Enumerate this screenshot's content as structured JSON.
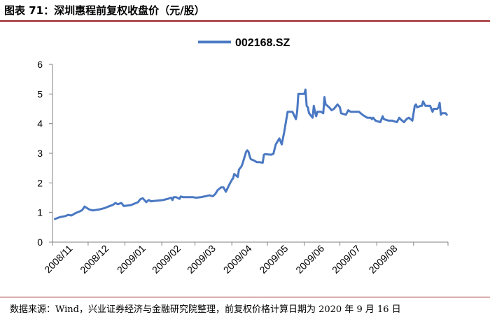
{
  "header": {
    "title": "图表 71：深圳惠程前复权收盘价（元/股）"
  },
  "footer": {
    "source": "数据来源：Wind，兴业证券经济与金融研究院整理，前复权价格计算日期为 2020 年 9 月 16 日"
  },
  "colors": {
    "line": "#4a78c2",
    "title_rule": "#9c1f23"
  },
  "chart_data": {
    "type": "line",
    "title": "",
    "xlabel": "",
    "ylabel": "",
    "ylim": [
      0,
      6
    ],
    "yticks": [
      0,
      1,
      2,
      3,
      4,
      5,
      6
    ],
    "grid": false,
    "legend_position": "top-center",
    "x_tick_labels": [
      "2008/11",
      "2008/12",
      "2009/01",
      "2009/02",
      "2009/03",
      "2009/04",
      "2009/05",
      "2009/06",
      "2009/07",
      "2009/08"
    ],
    "series": [
      {
        "name": "002168.SZ",
        "points": [
          [
            "2008/11/03",
            0.78
          ],
          [
            "2008/11/07",
            0.84
          ],
          [
            "2008/11/12",
            0.88
          ],
          [
            "2008/11/14",
            0.92
          ],
          [
            "2008/11/17",
            0.9
          ],
          [
            "2008/11/20",
            0.97
          ],
          [
            "2008/11/24",
            1.04
          ],
          [
            "2008/11/26",
            1.08
          ],
          [
            "2008/11/28",
            1.2
          ],
          [
            "2008/12/02",
            1.1
          ],
          [
            "2008/12/05",
            1.07
          ],
          [
            "2008/12/10",
            1.1
          ],
          [
            "2008/12/15",
            1.15
          ],
          [
            "2008/12/18",
            1.2
          ],
          [
            "2008/12/22",
            1.26
          ],
          [
            "2008/12/24",
            1.32
          ],
          [
            "2008/12/26",
            1.28
          ],
          [
            "2008/12/29",
            1.32
          ],
          [
            "2008/12/31",
            1.22
          ],
          [
            "2009/01/06",
            1.25
          ],
          [
            "2009/01/09",
            1.3
          ],
          [
            "2009/01/12",
            1.35
          ],
          [
            "2009/01/14",
            1.45
          ],
          [
            "2009/01/16",
            1.48
          ],
          [
            "2009/01/19",
            1.35
          ],
          [
            "2009/01/21",
            1.42
          ],
          [
            "2009/01/23",
            1.38
          ],
          [
            "2009/02/02",
            1.42
          ],
          [
            "2009/02/04",
            1.44
          ],
          [
            "2009/02/06",
            1.46
          ],
          [
            "2009/02/09",
            1.5
          ],
          [
            "2009/02/10",
            1.42
          ],
          [
            "2009/02/11",
            1.52
          ],
          [
            "2009/02/13",
            1.52
          ],
          [
            "2009/02/16",
            1.46
          ],
          [
            "2009/02/17",
            1.54
          ],
          [
            "2009/02/19",
            1.52
          ],
          [
            "2009/02/23",
            1.52
          ],
          [
            "2009/02/27",
            1.52
          ],
          [
            "2009/03/02",
            1.5
          ],
          [
            "2009/03/06",
            1.52
          ],
          [
            "2009/03/10",
            1.55
          ],
          [
            "2009/03/13",
            1.58
          ],
          [
            "2009/03/16",
            1.55
          ],
          [
            "2009/03/18",
            1.62
          ],
          [
            "2009/03/20",
            1.75
          ],
          [
            "2009/03/23",
            1.85
          ],
          [
            "2009/03/25",
            1.85
          ],
          [
            "2009/03/27",
            1.7
          ],
          [
            "2009/03/30",
            1.95
          ],
          [
            "2009/04/01",
            2.1
          ],
          [
            "2009/04/02",
            2.15
          ],
          [
            "2009/04/03",
            2.3
          ],
          [
            "2009/04/06",
            2.2
          ],
          [
            "2009/04/07",
            2.45
          ],
          [
            "2009/04/09",
            2.55
          ],
          [
            "2009/04/10",
            2.65
          ],
          [
            "2009/04/13",
            3.05
          ],
          [
            "2009/04/14",
            3.1
          ],
          [
            "2009/04/15",
            3.05
          ],
          [
            "2009/04/16",
            2.9
          ],
          [
            "2009/04/17",
            2.8
          ],
          [
            "2009/04/20",
            2.75
          ],
          [
            "2009/04/22",
            2.7
          ],
          [
            "2009/04/24",
            2.7
          ],
          [
            "2009/04/27",
            2.68
          ],
          [
            "2009/04/28",
            2.95
          ],
          [
            "2009/04/29",
            2.97
          ],
          [
            "2009/05/04",
            2.95
          ],
          [
            "2009/05/06",
            2.98
          ],
          [
            "2009/05/08",
            3.3
          ],
          [
            "2009/05/11",
            3.5
          ],
          [
            "2009/05/12",
            3.4
          ],
          [
            "2009/05/13",
            3.3
          ],
          [
            "2009/05/14",
            3.5
          ],
          [
            "2009/05/15",
            3.7
          ],
          [
            "2009/05/18",
            4.4
          ],
          [
            "2009/05/20",
            4.4
          ],
          [
            "2009/05/22",
            4.4
          ],
          [
            "2009/05/25",
            4.15
          ],
          [
            "2009/05/26",
            4.4
          ],
          [
            "2009/05/27",
            5.0
          ],
          [
            "2009/06/01",
            5.0
          ],
          [
            "2009/06/02",
            5.15
          ],
          [
            "2009/06/03",
            4.6
          ],
          [
            "2009/06/04",
            4.55
          ],
          [
            "2009/06/05",
            4.35
          ],
          [
            "2009/06/08",
            4.2
          ],
          [
            "2009/06/09",
            4.6
          ],
          [
            "2009/06/10",
            4.4
          ],
          [
            "2009/06/11",
            4.25
          ],
          [
            "2009/06/12",
            4.4
          ],
          [
            "2009/06/15",
            4.4
          ],
          [
            "2009/06/17",
            4.35
          ],
          [
            "2009/06/18",
            4.9
          ],
          [
            "2009/06/19",
            4.65
          ],
          [
            "2009/06/22",
            4.55
          ],
          [
            "2009/06/24",
            4.45
          ],
          [
            "2009/06/26",
            4.5
          ],
          [
            "2009/06/29",
            4.65
          ],
          [
            "2009/07/01",
            4.55
          ],
          [
            "2009/07/02",
            4.35
          ],
          [
            "2009/07/06",
            4.3
          ],
          [
            "2009/07/08",
            4.45
          ],
          [
            "2009/07/10",
            4.4
          ],
          [
            "2009/07/14",
            4.4
          ],
          [
            "2009/07/17",
            4.4
          ],
          [
            "2009/07/20",
            4.3
          ],
          [
            "2009/07/22",
            4.25
          ],
          [
            "2009/07/24",
            4.2
          ],
          [
            "2009/07/27",
            4.2
          ],
          [
            "2009/07/28",
            4.15
          ],
          [
            "2009/07/29",
            4.2
          ],
          [
            "2009/07/31",
            4.1
          ],
          [
            "2009/08/04",
            4.05
          ],
          [
            "2009/08/06",
            4.25
          ],
          [
            "2009/08/07",
            4.15
          ],
          [
            "2009/08/11",
            4.1
          ],
          [
            "2009/08/14",
            4.1
          ],
          [
            "2009/08/18",
            4.05
          ],
          [
            "2009/08/20",
            4.2
          ],
          [
            "2009/08/21",
            4.15
          ],
          [
            "2009/08/24",
            4.05
          ],
          [
            "2009/08/26",
            4.15
          ],
          [
            "2009/08/28",
            4.2
          ],
          [
            "2009/08/31",
            4.1
          ],
          [
            "2009/09/02",
            4.6
          ],
          [
            "2009/09/03",
            4.65
          ],
          [
            "2009/09/04",
            4.55
          ],
          [
            "2009/09/07",
            4.6
          ],
          [
            "2009/09/08",
            4.6
          ],
          [
            "2009/09/09",
            4.75
          ],
          [
            "2009/09/11",
            4.6
          ],
          [
            "2009/09/15",
            4.6
          ],
          [
            "2009/09/17",
            4.4
          ],
          [
            "2009/09/18",
            4.5
          ],
          [
            "2009/09/21",
            4.5
          ],
          [
            "2009/09/22",
            4.55
          ],
          [
            "2009/09/23",
            4.7
          ],
          [
            "2009/09/24",
            4.3
          ],
          [
            "2009/09/25",
            4.35
          ],
          [
            "2009/09/28",
            4.35
          ],
          [
            "2009/09/29",
            4.3
          ]
        ]
      }
    ]
  }
}
